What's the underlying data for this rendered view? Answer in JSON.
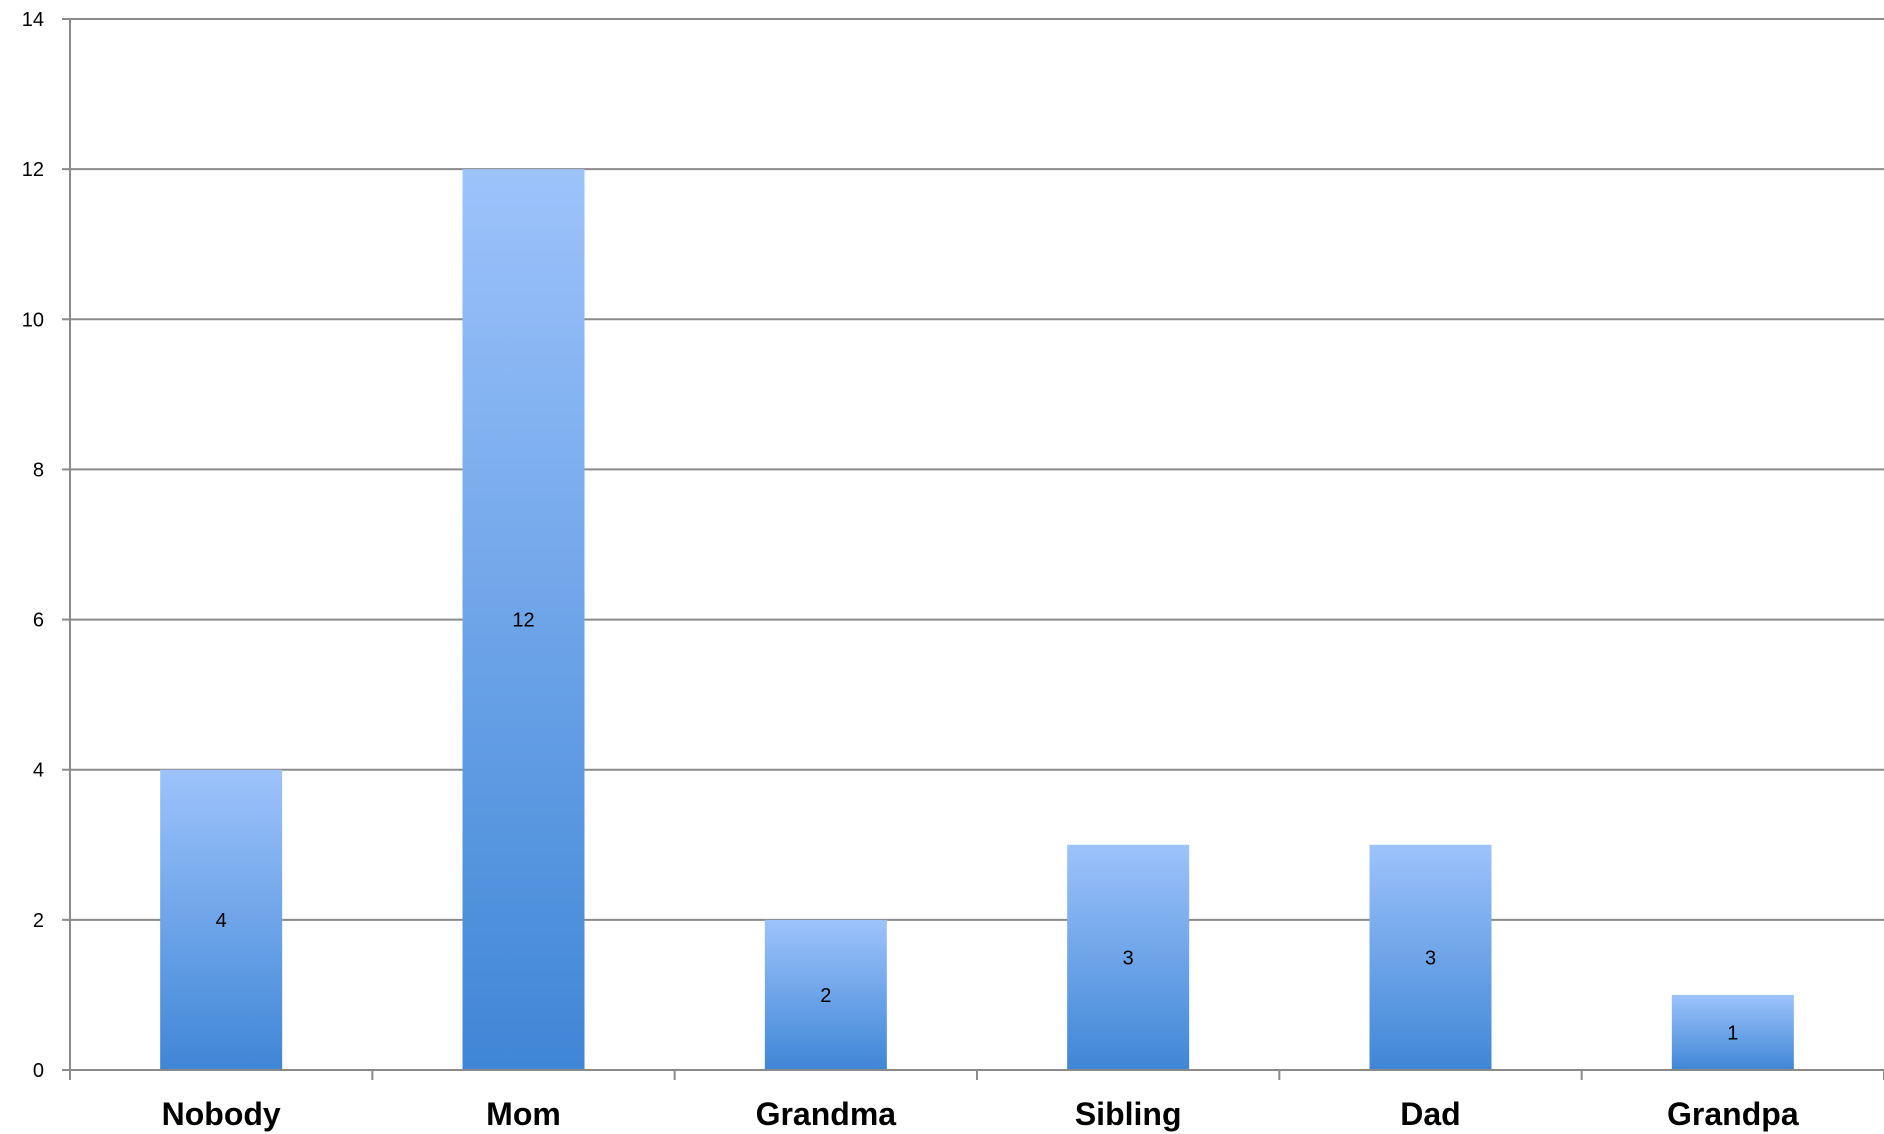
{
  "chart_data": {
    "type": "bar",
    "title": "",
    "xlabel": "",
    "ylabel": "",
    "categories": [
      "Nobody",
      "Mom",
      "Grandma",
      "Sibling",
      "Dad",
      "Grandpa"
    ],
    "values": [
      4,
      12,
      2,
      3,
      3,
      1
    ],
    "data_labels": [
      "4",
      "12",
      "2",
      "3",
      "3",
      "1"
    ],
    "ylim": [
      0,
      14
    ],
    "y_ticks": [
      0,
      2,
      4,
      6,
      8,
      10,
      12,
      14
    ],
    "y_tick_labels": [
      "0",
      "2",
      "4",
      "6",
      "8",
      "10",
      "12",
      "14"
    ],
    "grid": true,
    "legend": "none",
    "colors": {
      "bar_top": "#9dc3fb",
      "bar_bottom": "#3f86d6",
      "grid": "#8a8a8a"
    }
  }
}
